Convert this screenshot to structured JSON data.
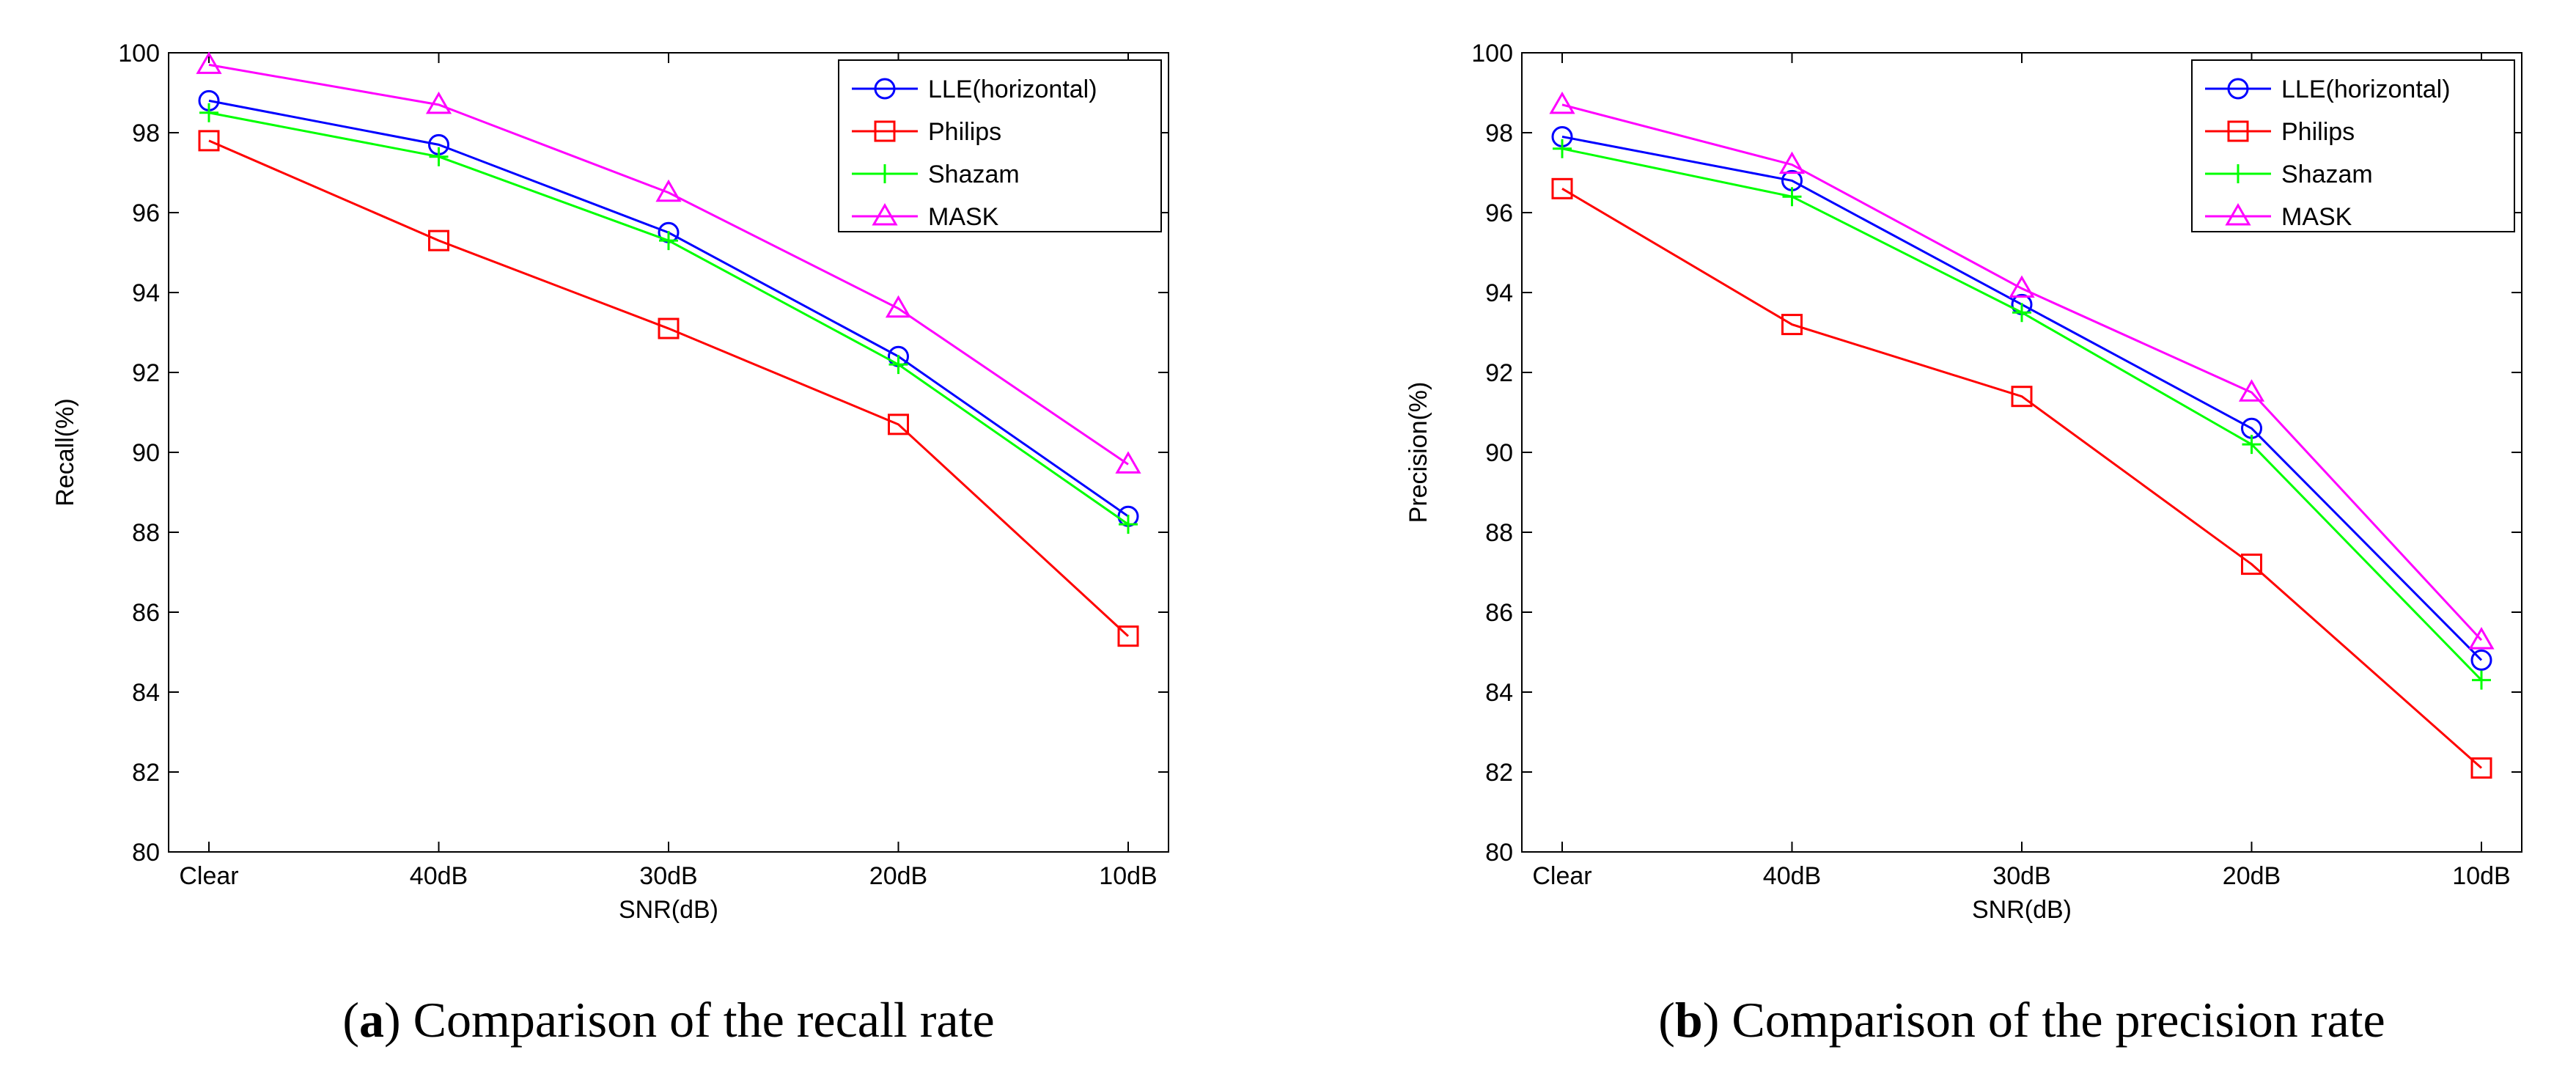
{
  "chart_data": [
    {
      "type": "line",
      "caption": {
        "letter": "a",
        "text": "Comparison of the recall rate"
      },
      "categories": [
        "Clear",
        "40dB",
        "30dB",
        "20dB",
        "10dB"
      ],
      "xlabel": "SNR(dB)",
      "ylabel": "Recall(%)",
      "ylim": [
        80,
        100
      ],
      "yticks": [
        80,
        82,
        84,
        86,
        88,
        90,
        92,
        94,
        96,
        98,
        100
      ],
      "legend_position": "top-right",
      "grid": false,
      "series": [
        {
          "name": "LLE(horizontal)",
          "color": "#0000ff",
          "marker": "circle",
          "values": [
            98.8,
            97.7,
            95.5,
            92.4,
            88.4
          ]
        },
        {
          "name": "Philips",
          "color": "#ff0000",
          "marker": "square",
          "values": [
            97.8,
            95.3,
            93.1,
            90.7,
            85.4
          ]
        },
        {
          "name": "Shazam",
          "color": "#00ff00",
          "marker": "plus",
          "values": [
            98.5,
            97.4,
            95.3,
            92.2,
            88.2
          ]
        },
        {
          "name": "MASK",
          "color": "#ff00ff",
          "marker": "triangle",
          "values": [
            99.7,
            98.7,
            96.5,
            93.6,
            89.7
          ]
        }
      ]
    },
    {
      "type": "line",
      "caption": {
        "letter": "b",
        "text": "Comparison of the precision rate"
      },
      "categories": [
        "Clear",
        "40dB",
        "30dB",
        "20dB",
        "10dB"
      ],
      "xlabel": "SNR(dB)",
      "ylabel": "Precision(%)",
      "ylim": [
        80,
        100
      ],
      "yticks": [
        80,
        82,
        84,
        86,
        88,
        90,
        92,
        94,
        96,
        98,
        100
      ],
      "legend_position": "top-right",
      "grid": false,
      "series": [
        {
          "name": "LLE(horizontal)",
          "color": "#0000ff",
          "marker": "circle",
          "values": [
            97.9,
            96.8,
            93.7,
            90.6,
            84.8
          ]
        },
        {
          "name": "Philips",
          "color": "#ff0000",
          "marker": "square",
          "values": [
            96.6,
            93.2,
            91.4,
            87.2,
            82.1
          ]
        },
        {
          "name": "Shazam",
          "color": "#00ff00",
          "marker": "plus",
          "values": [
            97.6,
            96.4,
            93.5,
            90.2,
            84.3
          ]
        },
        {
          "name": "MASK",
          "color": "#ff00ff",
          "marker": "triangle",
          "values": [
            98.7,
            97.2,
            94.1,
            91.5,
            85.3
          ]
        }
      ]
    }
  ]
}
